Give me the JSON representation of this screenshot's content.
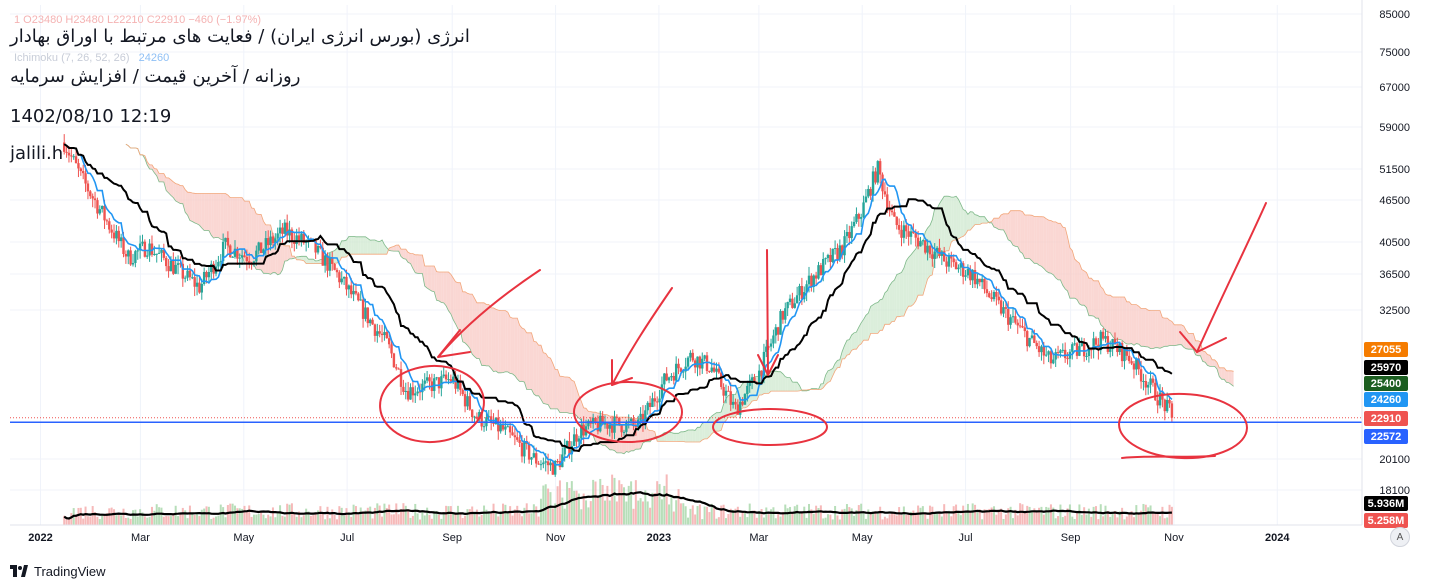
{
  "header": {
    "title_line1": "انرژی (بورس انرژی ایران) / فعایت های مرتبط با اوراق بهادار",
    "title_line2": "روزانه / آخرین قیمت / افزایش سرمایه",
    "datetime": "1402/08/10 12:19",
    "author": "jalili.h",
    "ohlc": "1  O23480  H23480  L22210  C22910  −460 (−1.97%)",
    "ichimoku_label": "Ichimoku (7, 26, 52, 26)",
    "ichimoku_value": "24260"
  },
  "footer": {
    "brand": "TradingView",
    "scale_button": "A"
  },
  "colors": {
    "up": "#26a69a",
    "down": "#ef5350",
    "tenkan": "#2196f3",
    "kijun": "#000000",
    "cloud_bear": "#f8c9c4",
    "cloud_bull": "#cfe8cf",
    "hline": "#2962ff",
    "annotation": "#e8333f"
  },
  "chart_data": {
    "type": "candlestick",
    "x_axis_labels": [
      "2022",
      "Mar",
      "May",
      "Jul",
      "Sep",
      "Nov",
      "2023",
      "Mar",
      "May",
      "Jul",
      "Sep",
      "Nov",
      "2024"
    ],
    "y_axis_labels": [
      "85000",
      "75000",
      "67000",
      "59000",
      "51500",
      "46500",
      "40500",
      "36500",
      "32500",
      "20100",
      "18100"
    ],
    "y_scale": "log",
    "price_labels": [
      {
        "value": "27055",
        "color": "#f57c00"
      },
      {
        "value": "25970",
        "color": "#000000"
      },
      {
        "value": "25400",
        "color": "#1b5e20"
      },
      {
        "value": "24260",
        "color": "#2196f3"
      },
      {
        "value": "22910",
        "color": "#ef5350"
      },
      {
        "value": "22572",
        "color": "#2962ff"
      },
      {
        "value": "5.936M",
        "color": "#000000"
      },
      {
        "value": "5.258M",
        "color": "#ef5350"
      }
    ],
    "horizontal_line": 22572,
    "last_close": 22910,
    "price_path": [
      {
        "t": "2022-01-15",
        "close": 56000
      },
      {
        "t": "2022-01-25",
        "close": 50000
      },
      {
        "t": "2022-02-10",
        "close": 43000
      },
      {
        "t": "2022-02-22",
        "close": 38500
      },
      {
        "t": "2022-03-05",
        "close": 40000
      },
      {
        "t": "2022-03-20",
        "close": 37500
      },
      {
        "t": "2022-04-05",
        "close": 35000
      },
      {
        "t": "2022-04-20",
        "close": 40000
      },
      {
        "t": "2022-05-05",
        "close": 38500
      },
      {
        "t": "2022-05-25",
        "close": 42000
      },
      {
        "t": "2022-06-10",
        "close": 40000
      },
      {
        "t": "2022-06-25",
        "close": 36500
      },
      {
        "t": "2022-07-10",
        "close": 32500
      },
      {
        "t": "2022-07-25",
        "close": 29000
      },
      {
        "t": "2022-08-05",
        "close": 25000
      },
      {
        "t": "2022-08-20",
        "close": 25500
      },
      {
        "t": "2022-09-01",
        "close": 26000
      },
      {
        "t": "2022-09-15",
        "close": 23000
      },
      {
        "t": "2022-10-01",
        "close": 22000
      },
      {
        "t": "2022-10-20",
        "close": 20000
      },
      {
        "t": "2022-11-01",
        "close": 19500
      },
      {
        "t": "2022-11-15",
        "close": 22000
      },
      {
        "t": "2022-12-01",
        "close": 22500
      },
      {
        "t": "2022-12-20",
        "close": 22300
      },
      {
        "t": "2023-01-05",
        "close": 26000
      },
      {
        "t": "2023-01-20",
        "close": 28000
      },
      {
        "t": "2023-02-01",
        "close": 27000
      },
      {
        "t": "2023-02-15",
        "close": 23500
      },
      {
        "t": "2023-03-01",
        "close": 26500
      },
      {
        "t": "2023-03-15",
        "close": 32000
      },
      {
        "t": "2023-04-01",
        "close": 36000
      },
      {
        "t": "2023-04-20",
        "close": 40000
      },
      {
        "t": "2023-05-01",
        "close": 45000
      },
      {
        "t": "2023-05-10",
        "close": 51500
      },
      {
        "t": "2023-05-20",
        "close": 43000
      },
      {
        "t": "2023-06-05",
        "close": 40500
      },
      {
        "t": "2023-06-20",
        "close": 38000
      },
      {
        "t": "2023-07-05",
        "close": 36500
      },
      {
        "t": "2023-07-20",
        "close": 33000
      },
      {
        "t": "2023-08-05",
        "close": 30000
      },
      {
        "t": "2023-08-20",
        "close": 27500
      },
      {
        "t": "2023-09-05",
        "close": 28500
      },
      {
        "t": "2023-09-20",
        "close": 29500
      },
      {
        "t": "2023-10-05",
        "close": 28000
      },
      {
        "t": "2023-10-20",
        "close": 25000
      },
      {
        "t": "2023-11-01",
        "close": 22910
      }
    ]
  }
}
